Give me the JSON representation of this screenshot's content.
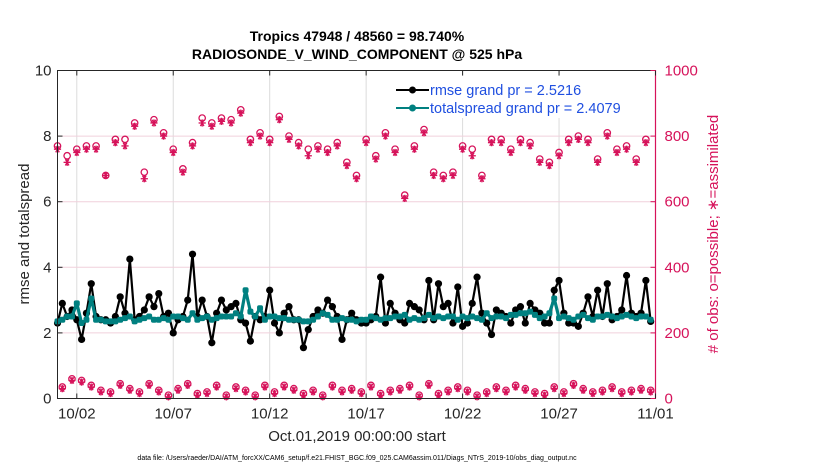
{
  "chart_data": {
    "type": "line",
    "title": [
      "Tropics 47948 / 48560 = 98.740%",
      "RADIOSONDE_V_WIND_COMPONENT @ 525 hPa"
    ],
    "xlabel": "Oct.01,2019 00:00:00 start",
    "ylabel": "rmse and totalspread",
    "ylabel_right": "# of obs: o=possible; ∗=assimilated",
    "footnote": "data file: /Users/raeder/DAI/ATM_forcXX/CAM6_setup/f.e21.FHIST_BGC.f09_025.CAM6assim.011/Diags_NTrS_2019-10/obs_diag_output.nc",
    "x_unit": "days since Oct.01,2019 00:00:00",
    "xlim": [
      0,
      31
    ],
    "x_ticks": [
      1,
      6,
      11,
      16,
      21,
      26,
      31
    ],
    "x_tick_labels": [
      "10/02",
      "10/07",
      "10/12",
      "10/17",
      "10/22",
      "10/27",
      "11/01"
    ],
    "ylim": [
      0,
      10
    ],
    "y_ticks": [
      0,
      2,
      4,
      6,
      8,
      10
    ],
    "ylim_right": [
      0,
      1000
    ],
    "y_ticks_right": [
      0,
      200,
      400,
      600,
      800,
      1000
    ],
    "grid": true,
    "legend_position": "top-right",
    "x_step_days": 0.25,
    "series": [
      {
        "name": "rmse grand pr = 2.5216",
        "axis": "left",
        "color": "#000000",
        "marker": "asterisk-dot",
        "values": [
          2.3,
          2.9,
          2.5,
          2.7,
          2.4,
          1.8,
          2.6,
          3.5,
          2.5,
          2.4,
          2.4,
          2.3,
          2.5,
          3.1,
          2.6,
          4.25,
          2.4,
          2.5,
          2.7,
          3.1,
          2.8,
          3.2,
          2.5,
          2.6,
          2.0,
          2.4,
          2.5,
          3.0,
          4.4,
          2.5,
          3.0,
          2.5,
          1.7,
          2.6,
          3.0,
          2.7,
          2.8,
          2.9,
          2.4,
          2.3,
          1.75,
          2.5,
          2.4,
          2.5,
          3.3,
          2.3,
          2.0,
          2.6,
          2.8,
          2.4,
          2.4,
          1.55,
          2.1,
          2.5,
          2.7,
          2.6,
          3.0,
          2.8,
          2.5,
          1.8,
          2.4,
          2.6,
          2.4,
          2.3,
          2.3,
          2.4,
          2.5,
          3.7,
          2.3,
          2.9,
          2.6,
          2.4,
          2.3,
          2.9,
          2.8,
          2.7,
          2.4,
          3.6,
          2.4,
          3.5,
          2.8,
          2.9,
          2.3,
          3.4,
          2.2,
          2.3,
          2.9,
          3.7,
          2.6,
          2.3,
          1.95,
          2.7,
          2.6,
          2.5,
          2.3,
          2.7,
          2.8,
          2.3,
          2.9,
          2.7,
          2.6,
          2.3,
          2.3,
          3.3,
          3.6,
          2.6,
          2.3,
          2.3,
          2.2,
          2.6,
          3.1,
          2.5,
          3.3,
          2.5,
          3.5,
          2.4,
          2.5,
          2.7,
          3.75,
          2.6,
          2.5,
          2.6,
          3.6,
          2.35
        ]
      },
      {
        "name": "totalspread grand pr = 2.4079",
        "axis": "left",
        "color": "#008080",
        "marker": "dot",
        "values": [
          2.35,
          2.4,
          2.5,
          2.5,
          2.9,
          2.3,
          2.4,
          3.05,
          2.4,
          2.4,
          2.35,
          2.35,
          2.35,
          2.4,
          2.45,
          2.5,
          2.35,
          2.4,
          2.45,
          2.5,
          2.4,
          2.4,
          2.45,
          2.4,
          2.5,
          2.5,
          2.45,
          2.4,
          2.6,
          2.4,
          2.45,
          2.5,
          2.4,
          2.45,
          2.5,
          2.5,
          2.5,
          2.6,
          2.5,
          3.3,
          2.65,
          2.5,
          2.75,
          2.4,
          2.5,
          2.5,
          2.45,
          2.45,
          2.4,
          2.4,
          2.4,
          2.35,
          2.35,
          2.4,
          2.5,
          2.6,
          2.55,
          2.4,
          2.4,
          2.45,
          2.4,
          2.4,
          2.35,
          2.4,
          2.4,
          2.5,
          2.45,
          2.4,
          2.45,
          2.45,
          2.5,
          2.5,
          2.55,
          2.4,
          2.45,
          2.4,
          2.45,
          2.55,
          2.45,
          2.5,
          2.45,
          2.5,
          2.5,
          2.4,
          2.5,
          2.45,
          2.5,
          2.45,
          2.4,
          2.6,
          2.45,
          2.5,
          2.5,
          2.45,
          2.55,
          2.55,
          2.6,
          2.6,
          2.65,
          2.55,
          2.45,
          2.5,
          2.6,
          3.05,
          2.45,
          2.5,
          2.45,
          2.4,
          2.5,
          2.55,
          2.45,
          2.4,
          2.5,
          2.5,
          2.55,
          2.5,
          2.45,
          2.5,
          2.55,
          2.5,
          2.45,
          2.5,
          2.5,
          2.4
        ]
      },
      {
        "name": "obs possible",
        "axis": "right",
        "color": "#d6125a",
        "marker": "circle",
        "values": [
          770,
          35,
          740,
          60,
          760,
          55,
          770,
          40,
          770,
          25,
          680,
          20,
          790,
          45,
          790,
          30,
          840,
          20,
          690,
          45,
          850,
          25,
          810,
          10,
          760,
          30,
          700,
          45,
          780,
          15,
          855,
          20,
          840,
          40,
          855,
          10,
          850,
          35,
          880,
          25,
          790,
          10,
          810,
          40,
          790,
          20,
          860,
          40,
          800,
          30,
          780,
          15,
          760,
          25,
          770,
          10,
          760,
          40,
          780,
          25,
          720,
          30,
          680,
          20,
          790,
          40,
          740,
          15,
          810,
          25,
          760,
          30,
          620,
          40,
          770,
          10,
          820,
          45,
          690,
          15,
          680,
          25,
          690,
          35,
          770,
          25,
          760,
          10,
          680,
          20,
          790,
          35,
          790,
          25,
          760,
          40,
          790,
          30,
          780,
          20,
          730,
          15,
          720,
          35,
          750,
          20,
          790,
          45,
          800,
          30,
          790,
          20,
          730,
          25,
          810,
          35,
          760,
          20,
          770,
          25,
          730,
          30,
          790,
          25
        ]
      },
      {
        "name": "obs assimilated",
        "axis": "right",
        "color": "#d6125a",
        "marker": "asterisk",
        "values": [
          760,
          30,
          720,
          55,
          750,
          50,
          760,
          35,
          760,
          20,
          680,
          15,
          780,
          40,
          770,
          25,
          830,
          15,
          670,
          40,
          840,
          20,
          800,
          5,
          750,
          25,
          690,
          40,
          770,
          10,
          840,
          15,
          830,
          35,
          845,
          5,
          840,
          30,
          870,
          20,
          780,
          5,
          800,
          35,
          780,
          15,
          850,
          35,
          790,
          25,
          770,
          10,
          740,
          20,
          760,
          5,
          750,
          35,
          770,
          20,
          710,
          25,
          670,
          15,
          780,
          35,
          730,
          10,
          800,
          20,
          750,
          25,
          610,
          35,
          760,
          5,
          810,
          40,
          680,
          10,
          670,
          20,
          680,
          30,
          760,
          20,
          740,
          5,
          670,
          15,
          780,
          30,
          780,
          20,
          750,
          35,
          780,
          25,
          770,
          15,
          720,
          10,
          710,
          30,
          740,
          15,
          780,
          40,
          790,
          25,
          780,
          15,
          720,
          20,
          800,
          30,
          750,
          15,
          760,
          20,
          720,
          25,
          780,
          20
        ]
      }
    ]
  }
}
